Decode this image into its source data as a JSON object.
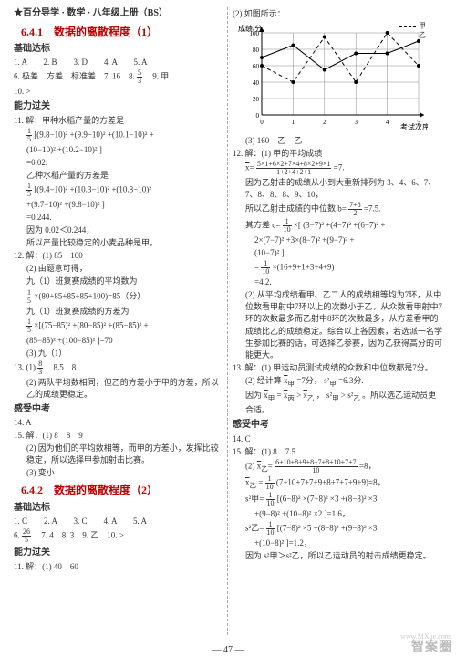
{
  "header": "★百分导学 · 数学 · 八年级上册（BS）",
  "left": {
    "title1": "6.4.1　数据的离散程度（1）",
    "jichu": "基础达标",
    "row1": "1. A　　2. B　　3. D　　4. A　　5. A",
    "row2a": "6. 极差　方差　标准差　7. 16　8. ",
    "row2frac_n": "5",
    "row2frac_d": "3",
    "row2b": "　9. 甲",
    "row3": "10. >",
    "nengli": "能力过关",
    "q11a": "11. 解：甲种水稻产量的方差是",
    "q11eq1a": "[(9.8−10)² +(9.9−10)² +(10.1−10)² +",
    "q11eq1b": "(10−10)² +(10.2−10)² ]",
    "q11eq1c": "=0.02.",
    "q11b": "乙种水稻产量的方差是",
    "q11eq2a": "[(9.4−10)² +(10.3−10)² +(10.8−10)² ",
    "q11eq2b": "+(9.7−10)² +(9.8−10)² ]",
    "q11eq2c": "=0.244.",
    "q11c": "因为 0.02＜0.244，",
    "q11d": "所以产量比较稳定的小麦品种是甲。",
    "q12a": "12. 解：(1) 85　100",
    "q12b": "(2) 由题意可得，",
    "q12c": "九（1）班复赛成绩的平均数为",
    "q12eq1": "×(80+85+85+85+100)=85（分）",
    "q12d": "九（1）班复赛成绩的方差为",
    "q12eq2a": "×[(75−85)² +(80−85)² +(85−85)² +",
    "q12eq2b": "(85−85)² +(100−85)² ]=70",
    "q12e": "(3) 九（1）",
    "q13a": "13. (1) ",
    "q13frac_n": "8",
    "q13frac_d": "3",
    "q13b": "　8.5　8",
    "q13c": "(2) 两队平均数相同，但乙的方差小于甲的方差，所以乙的成绩更稳定。",
    "ganshou": "感受中考",
    "q14": "14. A",
    "q15a": "15. 解：(1) 8　8　9",
    "q15b": "(2) 因为他们的平均数相等，而甲的方差小，发挥比较稳定，所以选择甲参加射击比赛。",
    "q15c": "(3) 变小",
    "title2": "6.4.2　数据的离散程度（2）",
    "jichu2": "基础达标",
    "row2_1": "1. C　　2. A　　3. C　　4. A　　5. A",
    "row2_2a": "6. ",
    "row2_2frac_n": "26",
    "row2_2frac_d": "5",
    "row2_2b": "　7. 4　8. 3　9. 乙　10. >",
    "nengli2": "能力过关",
    "q11_2": "11. 解：(1) 40　60"
  },
  "right": {
    "p1": "(2) 如图所示：",
    "chart": {
      "ylabel": "成绩/分",
      "xlabel": "考试次序",
      "yticks": [
        0,
        20,
        40,
        60,
        80,
        100
      ],
      "xticks": [
        0,
        1,
        2,
        3,
        4,
        5
      ],
      "legend_a": "甲",
      "legend_b": "乙",
      "series_a": [
        60,
        40,
        95,
        40,
        100,
        60
      ],
      "series_b": [
        70,
        85,
        55,
        75,
        75,
        90
      ],
      "colors": {
        "grid": "#888",
        "axis": "#000",
        "a": "#000",
        "b": "#000"
      }
    },
    "p2": "(3) 160　乙　乙",
    "q12a": "12. 解：(1) 甲的平均成绩",
    "q12frac_n": "5×1+6×2+7×4+8×2+9×1",
    "q12frac_d": "1+2+4+2+1",
    "q12eq_r": "=7.",
    "q12b": "因为乙射击的成绩从小到大重新排列为 3、4、6、7、7、8、8、8、9、10，",
    "q12c_a": "所以乙射击成绩的中位数 b=",
    "q12c_n": "7+8",
    "q12c_d": "2",
    "q12c_b": "=7.5.",
    "q12d": "其方差 c=",
    "q12e1": "×[ (3−7)² +(4−7)² +(6−7)² +",
    "q12e2": "2×(7−7)² +3×(8−7)² +(9−7)² +",
    "q12e3": "(10−7)² ]",
    "q12e4a": "=",
    "q12e4b": "×(16+9+1+3+4+9)",
    "q12e5": "=4.2.",
    "q12f": "(2) 从平均成绩看甲、乙二人的成绩相等均为7环，从中位数看甲射中7环以上的次数小于乙，从众数看甲射中7环的次数最多而乙射中8环的次数最多，从方差看甲的成绩比乙的成绩稳定。综合以上各因素，若选派一名学生参加比赛的话，可选择乙参赛，因为乙获得高分的可能更大。",
    "q13a": "13. 解：(1) 甲运动员测试成绩的众数和中位数都是7分。",
    "q13b_a": "(2) 经计算 ",
    "q13b_b": "=7分，",
    "q13b_c": "=6.3分.",
    "q13c_a": "因为 ",
    "q13c_b": "=",
    "q13c_c": ">",
    "q13c_d": "，",
    "q13c_e": ">",
    "q13c_f": "。所以选乙运动员更合适。",
    "ganshou": "感受中考",
    "q14": "14. C",
    "q15a": "15. 解：(1) 8　7.5",
    "q15b_a": "(2) ",
    "q15b_n": "6+10+8+9+8+7+8+10+7+7",
    "q15b_d": "10",
    "q15b_r": "=8，",
    "q15c_a": "=",
    "q15c_b": "(7+10+7+7+9+8+7+7+9+9)=8，",
    "q15d_a": "s²甲=",
    "q15d_b": "[(6−8)² ×(7−8)² ×3 +(8−8)² ×3",
    "q15d_c": "+(9−8)² +(10−8)² ×2 ]=1.6，",
    "q15e_a": "s²乙=",
    "q15e_b": "[(7−8)² ×5 +(8−8)² +(9−8)² ×3",
    "q15e_c": "+(10−8)² ]=1.2，",
    "q15f": "因为 s²甲＞s²乙，所以乙运动员的射击成绩更稳定。"
  },
  "footer": "— 47 —",
  "watermark": "智案圈",
  "wm_sub": "www.MXqe.com"
}
